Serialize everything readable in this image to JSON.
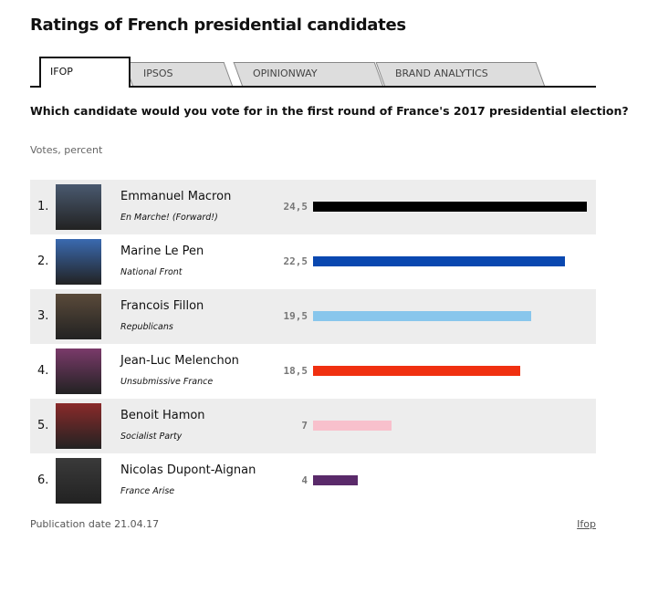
{
  "title": "Ratings of French presidential candidates",
  "tabs": [
    {
      "label": "IFOP",
      "active": true
    },
    {
      "label": "IPSOS"
    },
    {
      "label": "OPINIONWAY"
    },
    {
      "label": "BRAND ANALYTICS"
    }
  ],
  "question": "Which candidate would you vote for in the first round of France's 2017 presidential election?",
  "units": "Votes, percent",
  "chart_data": {
    "type": "bar",
    "orientation": "horizontal",
    "categories": [
      "Emmanuel Macron",
      "Marine Le Pen",
      "Francois Fillon",
      "Jean-Luc Melenchon",
      "Benoit Hamon",
      "Nicolas Dupont-Aignan"
    ],
    "values": [
      24.5,
      22.5,
      19.5,
      18.5,
      7,
      4
    ],
    "xlim": [
      0,
      24.5
    ],
    "rows": [
      {
        "rank": "1.",
        "name": "Emmanuel Macron",
        "party": "En Marche! (Forward!)",
        "value_label": "24,5",
        "value": 24.5,
        "color": "#000000",
        "photo": "#4a5a70"
      },
      {
        "rank": "2.",
        "name": "Marine Le Pen",
        "party": "National Front",
        "value_label": "22,5",
        "value": 22.5,
        "color": "#0a48b0",
        "photo": "#3a6ab0"
      },
      {
        "rank": "3.",
        "name": "Francois Fillon",
        "party": "Republicans",
        "value_label": "19,5",
        "value": 19.5,
        "color": "#88c6ec",
        "photo": "#5a4a3a"
      },
      {
        "rank": "4.",
        "name": "Jean-Luc Melenchon",
        "party": "Unsubmissive France",
        "value_label": "18,5",
        "value": 18.5,
        "color": "#f03010",
        "photo": "#7a3a6a"
      },
      {
        "rank": "5.",
        "name": "Benoit Hamon",
        "party": "Socialist Party",
        "value_label": "7",
        "value": 7,
        "color": "#f8c0cc",
        "photo": "#8a2a2a"
      },
      {
        "rank": "6.",
        "name": "Nicolas Dupont-Aignan",
        "party": "France Arise",
        "value_label": "4",
        "value": 4,
        "color": "#5a2a6a",
        "photo": "#3a3a3a"
      }
    ]
  },
  "footer": {
    "publication": "Publication date 21.04.17",
    "source": "Ifop"
  }
}
